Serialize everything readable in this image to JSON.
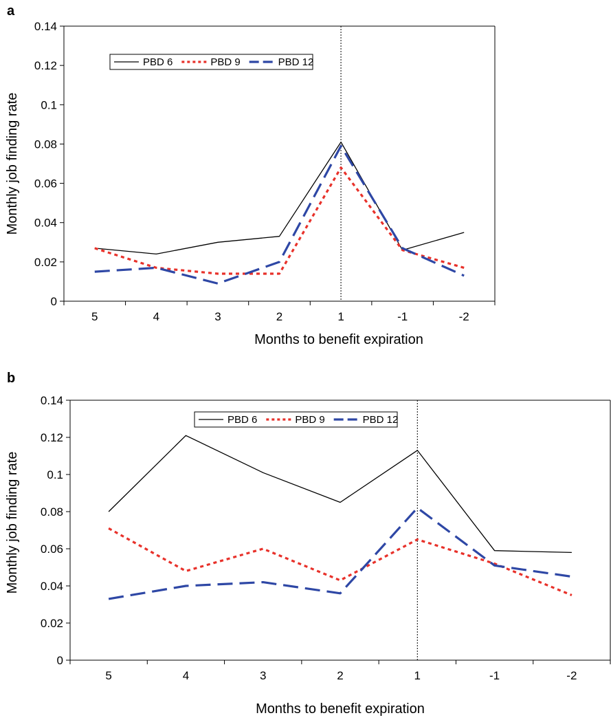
{
  "chart_data": [
    {
      "type": "line",
      "panel_label": "a",
      "xlabel": "Months to benefit expiration",
      "ylabel": "Monthly job finding rate",
      "categories": [
        "5",
        "4",
        "3",
        "2",
        "1",
        "-1",
        "-2"
      ],
      "yticks": [
        "0",
        "0.02",
        "0.04",
        "0.06",
        "0.08",
        "0.1",
        "0.12",
        "0.14"
      ],
      "ylim": [
        0,
        0.14
      ],
      "reference_line": "1",
      "legend_position": "top-left",
      "grid": false,
      "series": [
        {
          "name": "PBD 6",
          "color": "#000000",
          "style": "solid",
          "values": [
            0.027,
            0.024,
            0.03,
            0.033,
            0.081,
            0.026,
            0.035
          ]
        },
        {
          "name": "PBD 9",
          "color": "#e8312a",
          "style": "dotted",
          "values": [
            0.027,
            0.017,
            0.014,
            0.014,
            0.068,
            0.026,
            0.017
          ]
        },
        {
          "name": "PBD 12",
          "color": "#2e47a5",
          "style": "dashed",
          "values": [
            0.015,
            0.017,
            0.009,
            0.02,
            0.079,
            0.027,
            0.013
          ]
        }
      ]
    },
    {
      "type": "line",
      "panel_label": "b",
      "xlabel": "Months to benefit expiration",
      "ylabel": "Monthly job finding rate",
      "categories": [
        "5",
        "4",
        "3",
        "2",
        "1",
        "-1",
        "-2"
      ],
      "yticks": [
        "0",
        "0.02",
        "0.04",
        "0.06",
        "0.08",
        "0.1",
        "0.12",
        "0.14"
      ],
      "ylim": [
        0,
        0.14
      ],
      "reference_line": "1",
      "legend_position": "top-center",
      "grid": false,
      "series": [
        {
          "name": "PBD 6",
          "color": "#000000",
          "style": "solid",
          "values": [
            0.08,
            0.121,
            0.101,
            0.085,
            0.113,
            0.059,
            0.058
          ]
        },
        {
          "name": "PBD 9",
          "color": "#e8312a",
          "style": "dotted",
          "values": [
            0.071,
            0.048,
            0.06,
            0.043,
            0.065,
            0.052,
            0.035
          ]
        },
        {
          "name": "PBD 12",
          "color": "#2e47a5",
          "style": "dashed",
          "values": [
            0.033,
            0.04,
            0.042,
            0.036,
            0.082,
            0.051,
            0.045
          ]
        }
      ]
    }
  ]
}
